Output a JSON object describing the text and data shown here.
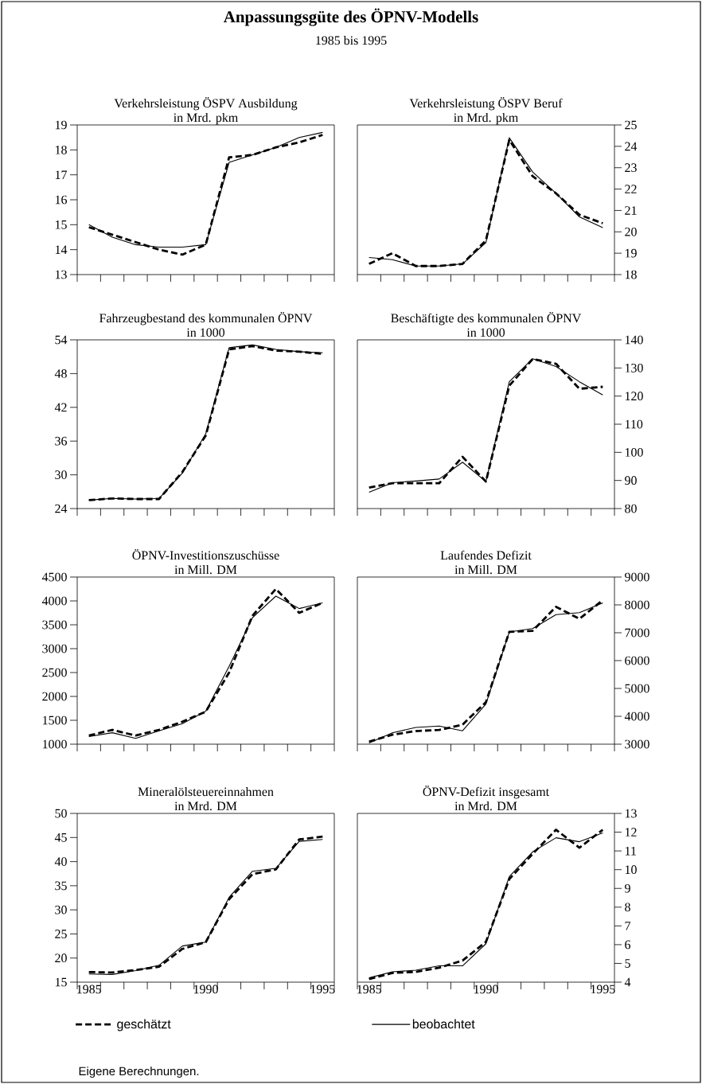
{
  "chart_data": [
    {
      "type": "line",
      "title": "Verkehrsleistung ÖSPV Ausbildung",
      "subtitle": "in Mrd. pkm",
      "annotations": [
        "Anpassungsgüte des ÖPNV-Modells",
        "1985 bis 1995"
      ],
      "x": [
        1985,
        1986,
        1987,
        1988,
        1989,
        1990,
        1991,
        1992,
        1993,
        1994,
        1995
      ],
      "xlim": [
        1984.5,
        1995.5
      ],
      "xticks": [
        {
          "value": 1984.5,
          "label": null
        },
        {
          "value": 1985.5,
          "label": null
        },
        {
          "value": 1986.5,
          "label": null
        },
        {
          "value": 1987.5,
          "label": null
        },
        {
          "value": 1988.5,
          "label": null
        },
        {
          "value": 1989.5,
          "label": null
        },
        {
          "value": 1990.5,
          "label": null
        },
        {
          "value": 1991.5,
          "label": null
        },
        {
          "value": 1992.5,
          "label": null
        },
        {
          "value": 1993.5,
          "label": null
        },
        {
          "value": 1994.5,
          "label": null
        },
        {
          "value": 1995.5,
          "label": null
        },
        1985,
        1990,
        1995
      ],
      "ylim": [
        13,
        19
      ],
      "yticks": [
        13,
        14,
        15,
        16,
        17,
        18,
        19
      ],
      "tick_labels": "y",
      "series": [
        {
          "color": "#000000",
          "line_style": "dashed",
          "values": [
            14.9,
            14.6,
            14.3,
            14.0,
            13.8,
            14.2,
            17.7,
            17.8,
            18.1,
            18.3,
            18.6
          ]
        },
        {
          "color": "#000000",
          "line_style": "solid",
          "values": [
            15.0,
            14.5,
            14.2,
            14.1,
            14.1,
            14.2,
            17.5,
            17.8,
            18.1,
            18.5,
            18.7
          ]
        }
      ]
    },
    {
      "type": "line",
      "title": "Verkehrsleistung ÖSPV Beruf",
      "subtitle": "in Mrd. pkm",
      "x": [
        1985,
        1986,
        1987,
        1988,
        1989,
        1990,
        1991,
        1992,
        1993,
        1994,
        1995
      ],
      "xlim": [
        1984.5,
        1995.5
      ],
      "xticks": [
        {
          "value": 1984.5,
          "label": null
        },
        {
          "value": 1985.5,
          "label": null
        },
        {
          "value": 1986.5,
          "label": null
        },
        {
          "value": 1987.5,
          "label": null
        },
        {
          "value": 1988.5,
          "label": null
        },
        {
          "value": 1989.5,
          "label": null
        },
        {
          "value": 1990.5,
          "label": null
        },
        {
          "value": 1991.5,
          "label": null
        },
        {
          "value": 1992.5,
          "label": null
        },
        {
          "value": 1993.5,
          "label": null
        },
        {
          "value": 1994.5,
          "label": null
        },
        {
          "value": 1995.5,
          "label": null
        },
        1985,
        1990,
        1995
      ],
      "ylim": [
        18,
        25
      ],
      "yticks": [
        18,
        19,
        20,
        21,
        22,
        23,
        24,
        25
      ],
      "tick_labels": "y",
      "series": [
        {
          "color": "#000000",
          "line_style": "dashed",
          "values": [
            18.5,
            19.0,
            18.4,
            18.4,
            18.5,
            19.6,
            24.3,
            22.6,
            21.8,
            20.8,
            20.4
          ]
        },
        {
          "color": "#000000",
          "line_style": "solid",
          "values": [
            18.8,
            18.7,
            18.4,
            18.4,
            18.5,
            19.5,
            24.4,
            22.8,
            21.8,
            20.7,
            20.2
          ]
        }
      ]
    },
    {
      "type": "line",
      "title": "Fahrzeugbestand des kommunalen ÖPNV",
      "subtitle": "in 1000",
      "x": [
        1985,
        1986,
        1987,
        1988,
        1989,
        1990,
        1991,
        1992,
        1993,
        1994,
        1995
      ],
      "xlim": [
        1984.5,
        1995.5
      ],
      "xticks": [
        {
          "value": 1984.5,
          "label": null
        },
        {
          "value": 1985.5,
          "label": null
        },
        {
          "value": 1986.5,
          "label": null
        },
        {
          "value": 1987.5,
          "label": null
        },
        {
          "value": 1988.5,
          "label": null
        },
        {
          "value": 1989.5,
          "label": null
        },
        {
          "value": 1990.5,
          "label": null
        },
        {
          "value": 1991.5,
          "label": null
        },
        {
          "value": 1992.5,
          "label": null
        },
        {
          "value": 1993.5,
          "label": null
        },
        {
          "value": 1994.5,
          "label": null
        },
        {
          "value": 1995.5,
          "label": null
        },
        1985,
        1990,
        1995
      ],
      "ylim": [
        24,
        54
      ],
      "yticks": [
        24,
        30,
        36,
        42,
        48,
        54
      ],
      "tick_labels": "y",
      "series": [
        {
          "color": "#000000",
          "line_style": "dashed",
          "values": [
            25.5,
            25.8,
            25.7,
            25.7,
            30.5,
            37.0,
            52.3,
            52.9,
            52.1,
            51.9,
            51.5
          ]
        },
        {
          "color": "#000000",
          "line_style": "solid",
          "values": [
            25.5,
            25.8,
            25.7,
            25.8,
            30.3,
            37.3,
            52.6,
            53.1,
            52.3,
            51.9,
            51.7
          ]
        }
      ]
    },
    {
      "type": "line",
      "title": "Beschäftigte des kommunalen ÖPNV",
      "subtitle": "in 1000",
      "x": [
        1985,
        1986,
        1987,
        1988,
        1989,
        1990,
        1991,
        1992,
        1993,
        1994,
        1995
      ],
      "xlim": [
        1984.5,
        1995.5
      ],
      "xticks": [
        {
          "value": 1984.5,
          "label": null
        },
        {
          "value": 1985.5,
          "label": null
        },
        {
          "value": 1986.5,
          "label": null
        },
        {
          "value": 1987.5,
          "label": null
        },
        {
          "value": 1988.5,
          "label": null
        },
        {
          "value": 1989.5,
          "label": null
        },
        {
          "value": 1990.5,
          "label": null
        },
        {
          "value": 1991.5,
          "label": null
        },
        {
          "value": 1992.5,
          "label": null
        },
        {
          "value": 1993.5,
          "label": null
        },
        {
          "value": 1994.5,
          "label": null
        },
        {
          "value": 1995.5,
          "label": null
        },
        1985,
        1990,
        1995
      ],
      "ylim": [
        80,
        140
      ],
      "yticks": [
        80,
        90,
        100,
        110,
        120,
        130,
        140
      ],
      "tick_labels": "y",
      "series": [
        {
          "color": "#000000",
          "line_style": "dashed",
          "values": [
            87.5,
            89,
            89,
            89,
            98.4,
            89.6,
            123.7,
            133.2,
            131.5,
            122.6,
            123.3
          ]
        },
        {
          "color": "#000000",
          "line_style": "solid",
          "values": [
            85.8,
            89.2,
            89.8,
            90.5,
            96.5,
            89.6,
            125.1,
            133.3,
            130.5,
            125.1,
            120.4
          ]
        }
      ]
    },
    {
      "type": "line",
      "title": "ÖPNV-Investitionszuschüsse",
      "subtitle": "in Mill. DM",
      "x": [
        1985,
        1986,
        1987,
        1988,
        1989,
        1990,
        1991,
        1992,
        1993,
        1994,
        1995
      ],
      "xlim": [
        1984.5,
        1995.5
      ],
      "xticks": [
        {
          "value": 1984.5,
          "label": null
        },
        {
          "value": 1985.5,
          "label": null
        },
        {
          "value": 1986.5,
          "label": null
        },
        {
          "value": 1987.5,
          "label": null
        },
        {
          "value": 1988.5,
          "label": null
        },
        {
          "value": 1989.5,
          "label": null
        },
        {
          "value": 1990.5,
          "label": null
        },
        {
          "value": 1991.5,
          "label": null
        },
        {
          "value": 1992.5,
          "label": null
        },
        {
          "value": 1993.5,
          "label": null
        },
        {
          "value": 1994.5,
          "label": null
        },
        {
          "value": 1995.5,
          "label": null
        },
        1985,
        1990,
        1995
      ],
      "ylim": [
        1000,
        4500
      ],
      "yticks": [
        1000,
        1500,
        2000,
        2500,
        3000,
        3500,
        4000,
        4500
      ],
      "tick_labels": "y",
      "series": [
        {
          "color": "#000000",
          "line_style": "dashed",
          "values": [
            1180,
            1300,
            1180,
            1300,
            1470,
            1680,
            2500,
            3690,
            4250,
            3750,
            3960
          ]
        },
        {
          "color": "#000000",
          "line_style": "solid",
          "values": [
            1160,
            1240,
            1120,
            1280,
            1430,
            1690,
            2630,
            3650,
            4100,
            3840,
            3960
          ]
        }
      ]
    },
    {
      "type": "line",
      "title": "Laufendes Defizit",
      "subtitle": "in Mill. DM",
      "x": [
        1985,
        1986,
        1987,
        1988,
        1989,
        1990,
        1991,
        1992,
        1993,
        1994,
        1995
      ],
      "xlim": [
        1984.5,
        1995.5
      ],
      "xticks": [
        {
          "value": 1984.5,
          "label": null
        },
        {
          "value": 1985.5,
          "label": null
        },
        {
          "value": 1986.5,
          "label": null
        },
        {
          "value": 1987.5,
          "label": null
        },
        {
          "value": 1988.5,
          "label": null
        },
        {
          "value": 1989.5,
          "label": null
        },
        {
          "value": 1990.5,
          "label": null
        },
        {
          "value": 1991.5,
          "label": null
        },
        {
          "value": 1992.5,
          "label": null
        },
        {
          "value": 1993.5,
          "label": null
        },
        {
          "value": 1994.5,
          "label": null
        },
        {
          "value": 1995.5,
          "label": null
        },
        1985,
        1990,
        1995
      ],
      "ylim": [
        3000,
        9000
      ],
      "yticks": [
        3000,
        4000,
        5000,
        6000,
        7000,
        8000,
        9000
      ],
      "tick_labels": "y",
      "series": [
        {
          "color": "#000000",
          "line_style": "dashed",
          "values": [
            3090,
            3340,
            3470,
            3510,
            3700,
            4510,
            7030,
            7070,
            7930,
            7500,
            8170
          ]
        },
        {
          "color": "#000000",
          "line_style": "solid",
          "values": [
            3040,
            3410,
            3600,
            3650,
            3480,
            4440,
            7030,
            7150,
            7650,
            7720,
            8070
          ]
        }
      ]
    },
    {
      "type": "line",
      "title": "Mineralölsteuereinnahmen",
      "subtitle": "in Mrd. DM",
      "annotations": [
        "Eigene Berechnungen."
      ],
      "legend": "bottom",
      "x": [
        1985,
        1986,
        1987,
        1988,
        1989,
        1990,
        1991,
        1992,
        1993,
        1994,
        1995
      ],
      "xlim": [
        1984.5,
        1995.5
      ],
      "xticks": [
        {
          "value": 1984.5,
          "label": null
        },
        {
          "value": 1985.5,
          "label": null
        },
        {
          "value": 1986.5,
          "label": null
        },
        {
          "value": 1987.5,
          "label": null
        },
        {
          "value": 1988.5,
          "label": null
        },
        {
          "value": 1989.5,
          "label": null
        },
        {
          "value": 1990.5,
          "label": null
        },
        {
          "value": 1991.5,
          "label": null
        },
        {
          "value": 1992.5,
          "label": null
        },
        {
          "value": 1993.5,
          "label": null
        },
        {
          "value": 1994.5,
          "label": null
        },
        {
          "value": 1995.5,
          "label": null
        },
        1985,
        1990,
        1995
      ],
      "ylim": [
        15,
        50
      ],
      "yticks": [
        15,
        20,
        25,
        30,
        35,
        40,
        45,
        50
      ],
      "series": [
        {
          "name": "geschätzt",
          "color": "#000000",
          "line_style": "dashed",
          "values": [
            17.1,
            17.0,
            17.5,
            18.2,
            21.9,
            23.3,
            32.2,
            37.4,
            38.4,
            44.6,
            45.2
          ]
        },
        {
          "name": "beobachtet",
          "color": "#000000",
          "line_style": "solid",
          "values": [
            16.7,
            16.6,
            17.4,
            18.5,
            22.5,
            23.3,
            32.6,
            38.0,
            38.6,
            44.2,
            44.6
          ]
        }
      ]
    },
    {
      "type": "line",
      "title": "ÖPNV-Defizit insgesamt",
      "subtitle": "in Mrd. DM",
      "x": [
        1985,
        1986,
        1987,
        1988,
        1989,
        1990,
        1991,
        1992,
        1993,
        1994,
        1995
      ],
      "xlim": [
        1984.5,
        1995.5
      ],
      "xticks": [
        {
          "value": 1984.5,
          "label": null
        },
        {
          "value": 1985.5,
          "label": null
        },
        {
          "value": 1986.5,
          "label": null
        },
        {
          "value": 1987.5,
          "label": null
        },
        {
          "value": 1988.5,
          "label": null
        },
        {
          "value": 1989.5,
          "label": null
        },
        {
          "value": 1990.5,
          "label": null
        },
        {
          "value": 1991.5,
          "label": null
        },
        {
          "value": 1992.5,
          "label": null
        },
        {
          "value": 1993.5,
          "label": null
        },
        {
          "value": 1994.5,
          "label": null
        },
        {
          "value": 1995.5,
          "label": null
        },
        1985,
        1990,
        1995
      ],
      "ylim": [
        4,
        13
      ],
      "yticks": [
        4,
        5,
        6,
        7,
        8,
        9,
        10,
        11,
        12,
        13
      ],
      "series": [
        {
          "color": "#000000",
          "line_style": "dashed",
          "values": [
            4.17,
            4.49,
            4.55,
            4.77,
            5.15,
            6.15,
            9.5,
            10.84,
            12.13,
            11.17,
            12.13
          ]
        },
        {
          "color": "#000000",
          "line_style": "solid",
          "values": [
            4.23,
            4.55,
            4.64,
            4.87,
            4.87,
            6.05,
            9.63,
            10.95,
            11.7,
            11.49,
            11.96
          ]
        }
      ]
    }
  ]
}
